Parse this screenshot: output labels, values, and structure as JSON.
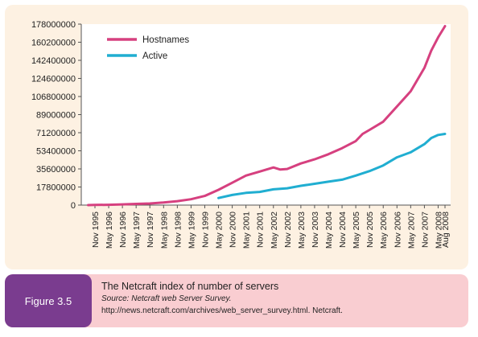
{
  "figure": {
    "label": "Figure 3.5",
    "title": "The Netcraft index of number of servers",
    "source": "Source: Netcraft web Server Survey.",
    "url": "http://news.netcraft.com/archives/web_server_survey.html. Netcraft."
  },
  "colors": {
    "hostnames": "#d6407f",
    "active": "#20aed1",
    "chart_bg": "#fdf1e2",
    "caption_bg": "#f9cdd1",
    "figure_tab": "#7a3c8f"
  },
  "chart_data": {
    "type": "line",
    "title": "",
    "xlabel": "",
    "ylabel": "",
    "ylim": [
      0,
      178000000
    ],
    "y_ticks": [
      "0",
      "17800000",
      "35600000",
      "53400000",
      "71200000",
      "89000000",
      "106800000",
      "124600000",
      "142400000",
      "160200000",
      "178000000"
    ],
    "x_ticks": [
      "Nov 1995",
      "May 1996",
      "Nov 1996",
      "May 1997",
      "Nov 1997",
      "May 1998",
      "Nov 1998",
      "May 1999",
      "Nov 1999",
      "May 2000",
      "Nov 2000",
      "May 2001",
      "Nov 2001",
      "May 2002",
      "Nov 2002",
      "May 2003",
      "Nov 2003",
      "May 2004",
      "Nov 2004",
      "May 2005",
      "Nov 2005",
      "May 2006",
      "Nov 2006",
      "May 2007",
      "Nov 2007",
      "May 2008",
      "Aug 2008"
    ],
    "legend_position": "top-left",
    "series": [
      {
        "name": "Hostnames",
        "x": [
          "Aug 1995",
          "Nov 1995",
          "May 1996",
          "Nov 1996",
          "May 1997",
          "Nov 1997",
          "May 1998",
          "Nov 1998",
          "May 1999",
          "Nov 1999",
          "May 2000",
          "Nov 2000",
          "May 2001",
          "Nov 2001",
          "May 2002",
          "Aug 2002",
          "Nov 2002",
          "May 2003",
          "Nov 2003",
          "May 2004",
          "Nov 2004",
          "May 2005",
          "Aug 2005",
          "Nov 2005",
          "May 2006",
          "Nov 2006",
          "May 2007",
          "Nov 2007",
          "Feb 2008",
          "May 2008",
          "Aug 2008"
        ],
        "values": [
          20000,
          120000,
          300000,
          700000,
          1200000,
          1600000,
          2500000,
          3900000,
          5800000,
          9000000,
          15000000,
          22000000,
          29000000,
          33000000,
          37000000,
          35000000,
          35500000,
          41000000,
          45000000,
          50000000,
          56000000,
          63000000,
          70000000,
          74000000,
          82000000,
          97000000,
          112000000,
          135000000,
          152000000,
          165000000,
          176000000
        ]
      },
      {
        "name": "Active",
        "x": [
          "May 2000",
          "Nov 2000",
          "May 2001",
          "Nov 2001",
          "May 2002",
          "Nov 2002",
          "May 2003",
          "Nov 2003",
          "May 2004",
          "Nov 2004",
          "May 2005",
          "Nov 2005",
          "May 2006",
          "Nov 2006",
          "May 2007",
          "Nov 2007",
          "Feb 2008",
          "May 2008",
          "Aug 2008"
        ],
        "values": [
          7000000,
          10000000,
          12000000,
          13000000,
          15500000,
          16500000,
          19000000,
          21000000,
          23000000,
          25000000,
          29000000,
          33500000,
          39000000,
          47000000,
          52000000,
          60000000,
          66000000,
          69000000,
          70000000
        ]
      }
    ]
  }
}
